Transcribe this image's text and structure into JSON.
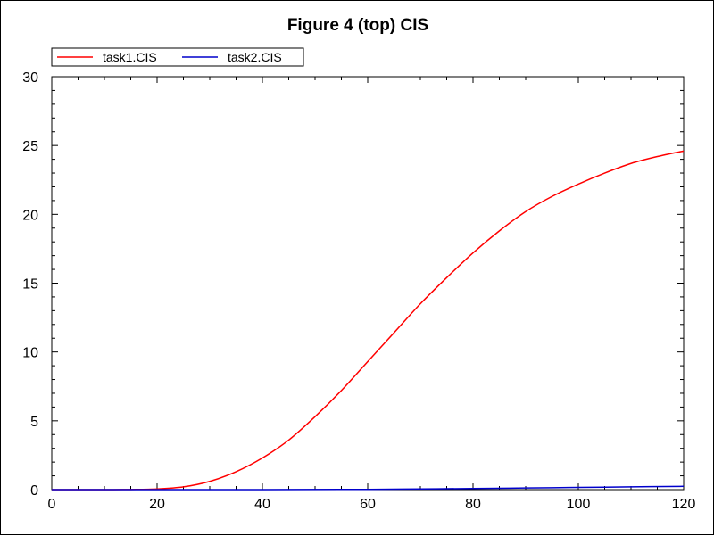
{
  "chart_data": {
    "type": "line",
    "title": "Figure 4 (top) CIS",
    "xlabel": "",
    "ylabel": "",
    "xlim": [
      0,
      120
    ],
    "ylim": [
      0,
      30
    ],
    "x_ticks": [
      0,
      20,
      40,
      60,
      80,
      100,
      120
    ],
    "y_ticks": [
      0,
      5,
      10,
      15,
      20,
      25,
      30
    ],
    "x_tick_labels": [
      "0",
      "20",
      "40",
      "60",
      "80",
      "100",
      "120"
    ],
    "y_tick_labels": [
      "0",
      "5",
      "10",
      "15",
      "20",
      "25",
      "30"
    ],
    "grid": false,
    "legend_position": "top-left",
    "series": [
      {
        "name": "task1.CIS",
        "color": "#ff0000",
        "x": [
          0,
          10,
          15,
          20,
          25,
          30,
          35,
          40,
          45,
          50,
          55,
          60,
          65,
          70,
          75,
          80,
          85,
          90,
          95,
          100,
          105,
          110,
          115,
          120
        ],
        "y": [
          0,
          0,
          0.01,
          0.05,
          0.2,
          0.6,
          1.3,
          2.3,
          3.6,
          5.3,
          7.2,
          9.3,
          11.4,
          13.5,
          15.4,
          17.2,
          18.8,
          20.2,
          21.3,
          22.2,
          23.0,
          23.7,
          24.2,
          24.6
        ]
      },
      {
        "name": "task2.CIS",
        "color": "#0000cc",
        "x": [
          0,
          20,
          40,
          60,
          70,
          80,
          90,
          100,
          110,
          120
        ],
        "y": [
          0,
          0,
          0,
          0.02,
          0.05,
          0.08,
          0.12,
          0.16,
          0.2,
          0.24
        ]
      }
    ]
  }
}
